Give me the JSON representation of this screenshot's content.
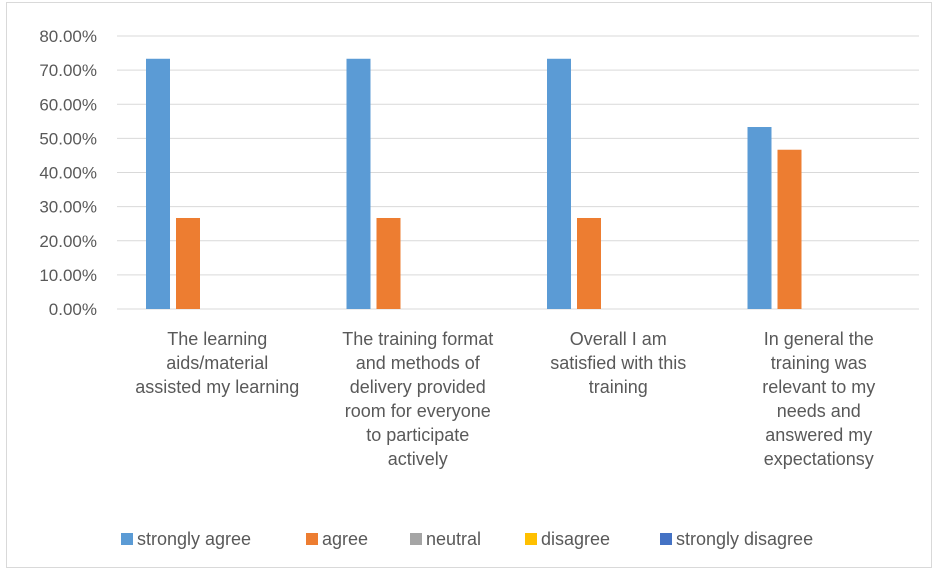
{
  "chart_data": {
    "type": "bar",
    "categories": [
      [
        "The learning",
        "aids/material",
        "assisted my learning"
      ],
      [
        "The training format",
        "and methods of",
        "delivery provided",
        "room for everyone",
        "to participate",
        "actively"
      ],
      [
        "Overall I am",
        "satisfied with this",
        "training"
      ],
      [
        "In general the",
        "training was",
        "relevant to my",
        "needs and",
        "answered my",
        "expectationsy"
      ]
    ],
    "series": [
      {
        "name": "strongly agree",
        "color": "#5B9BD5",
        "values": [
          73.33,
          73.33,
          73.33,
          53.33
        ]
      },
      {
        "name": "agree",
        "color": "#ED7D31",
        "values": [
          26.67,
          26.67,
          26.67,
          46.67
        ]
      },
      {
        "name": "neutral",
        "color": "#A5A5A5",
        "values": [
          0,
          0,
          0,
          0
        ]
      },
      {
        "name": "disagree",
        "color": "#FFC000",
        "values": [
          0,
          0,
          0,
          0
        ]
      },
      {
        "name": "strongly disagree",
        "color": "#4472C4",
        "values": [
          0,
          0,
          0,
          0
        ]
      }
    ],
    "y_ticks": [
      "0.00%",
      "10.00%",
      "20.00%",
      "30.00%",
      "40.00%",
      "50.00%",
      "60.00%",
      "70.00%",
      "80.00%"
    ],
    "ylim": [
      0,
      80
    ],
    "grid": true,
    "legend_position": "bottom",
    "gridline_color": "#d9d9d9"
  }
}
